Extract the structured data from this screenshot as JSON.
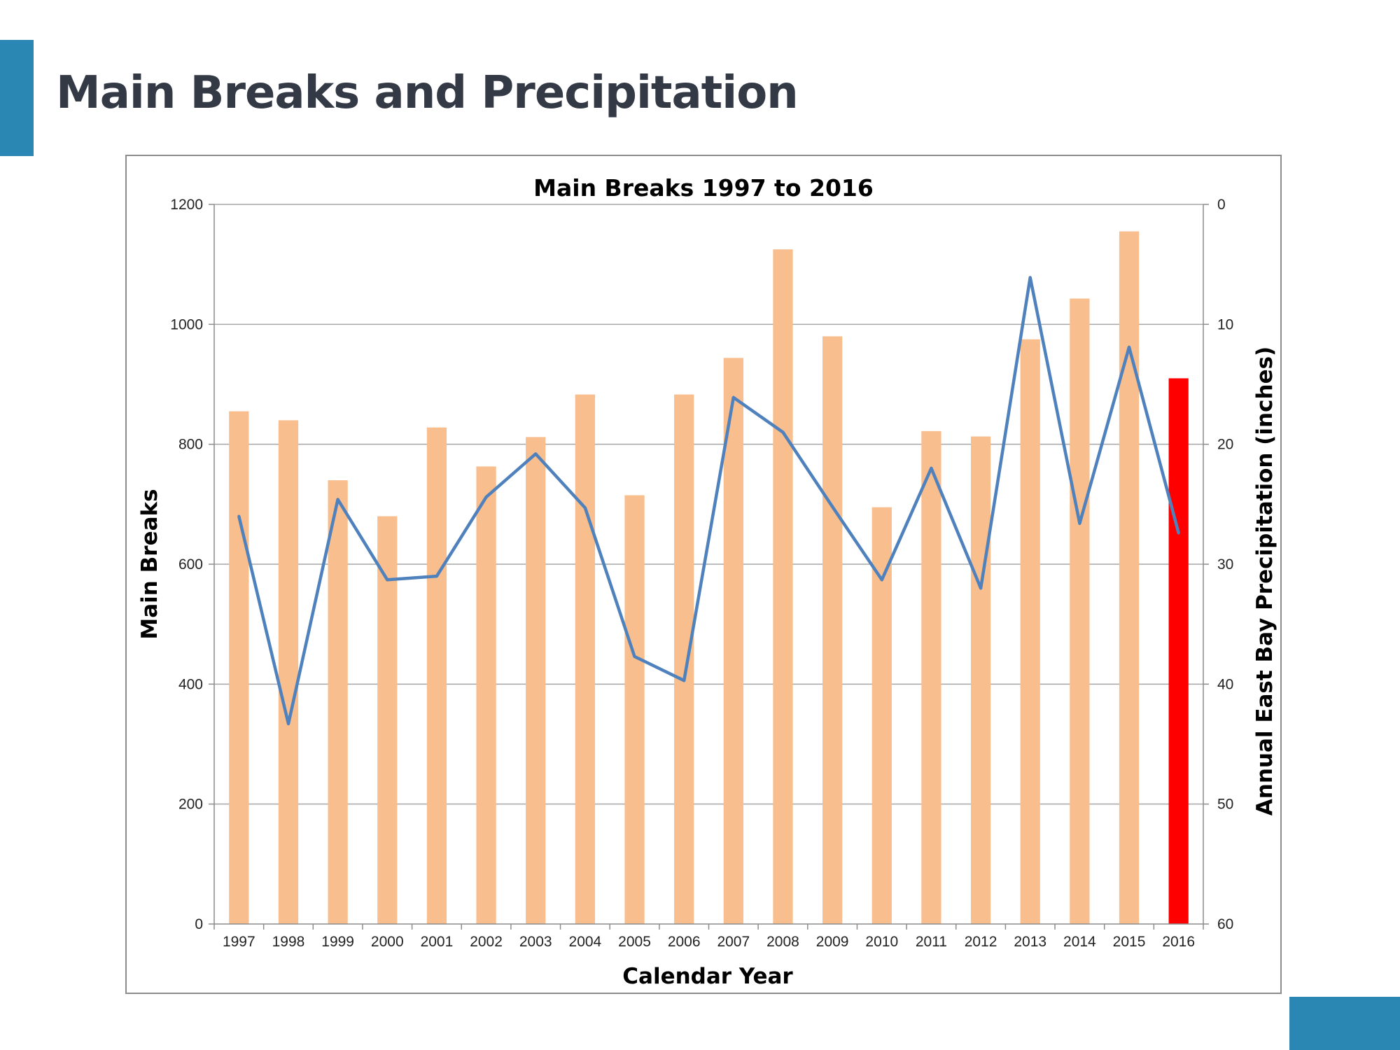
{
  "page": {
    "title": "Main Breaks and Precipitation",
    "accent_color": "#2a86b2"
  },
  "chart_data": {
    "type": "bar",
    "title": "Main Breaks 1997 to 2016",
    "xlabel": "Calendar Year",
    "ylabel": "Main Breaks",
    "y2label": "Annual East Bay Precipitation (inches)",
    "ylim": [
      0,
      1200
    ],
    "y2lim": [
      0,
      60
    ],
    "y2_inverted": true,
    "yticks": [
      0,
      200,
      400,
      600,
      800,
      1000,
      1200
    ],
    "y2ticks": [
      0,
      10,
      20,
      30,
      40,
      50,
      60
    ],
    "grid": true,
    "categories": [
      "1997",
      "1998",
      "1999",
      "2000",
      "2001",
      "2002",
      "2003",
      "2004",
      "2005",
      "2006",
      "2007",
      "2008",
      "2009",
      "2010",
      "2011",
      "2012",
      "2013",
      "2014",
      "2015",
      "2016"
    ],
    "series": [
      {
        "type": "bar",
        "axis": "left",
        "values": [
          855,
          840,
          740,
          680,
          828,
          763,
          812,
          883,
          715,
          883,
          944,
          1125,
          980,
          695,
          822,
          813,
          975,
          1043,
          1155,
          910
        ],
        "color": "#f9be8e",
        "highlight": {
          "category": "2016",
          "color": "#ff0000"
        }
      },
      {
        "type": "line",
        "axis": "right",
        "values": [
          26.0,
          43.3,
          24.6,
          31.3,
          31.0,
          24.4,
          20.8,
          25.3,
          37.7,
          39.7,
          16.1,
          19.0,
          25.2,
          31.3,
          22.0,
          32.0,
          6.1,
          26.6,
          11.9,
          27.4
        ],
        "color": "#4f81bd"
      }
    ]
  }
}
